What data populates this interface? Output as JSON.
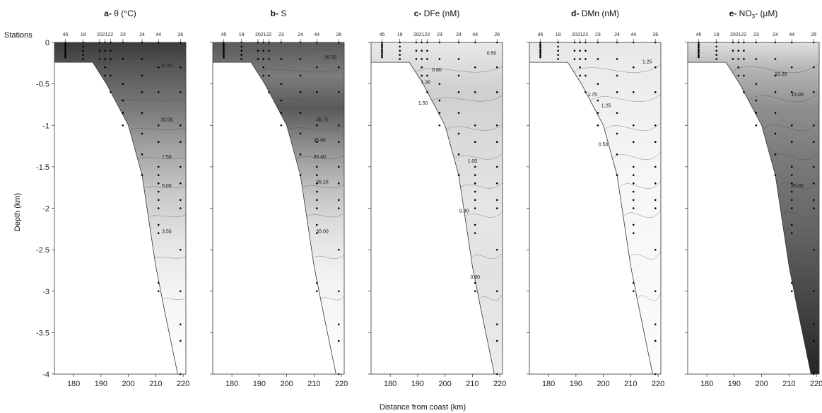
{
  "figure": {
    "stations_label": "Stations",
    "ylabel": "Depth (km)",
    "xlabel": "Distance from coast (km)"
  },
  "chart_data": {
    "type": "contour",
    "xlim": [
      173,
      221
    ],
    "ylim": [
      -4,
      0
    ],
    "x_ticks": [
      180,
      190,
      200,
      210,
      220
    ],
    "x_tick_labels": [
      "180",
      "190",
      "200",
      "210",
      "220"
    ],
    "y_ticks": [
      0,
      -0.5,
      -1,
      -1.5,
      -2,
      -2.5,
      -3,
      -3.5,
      -4
    ],
    "y_tick_labels": [
      "0",
      "-0.5",
      "-1",
      "-1.5",
      "-2",
      "-2.5",
      "-3",
      "-3.5",
      "-4"
    ],
    "stations": [
      {
        "name": "45",
        "x": 177
      },
      {
        "name": "19",
        "x": 183.5
      },
      {
        "name": "20",
        "x": 189.5
      },
      {
        "name": "21",
        "x": 191.5
      },
      {
        "name": "22",
        "x": 193.5
      },
      {
        "name": "23",
        "x": 198
      },
      {
        "name": "24",
        "x": 205
      },
      {
        "name": "44",
        "x": 211
      },
      {
        "name": "26",
        "x": 219
      }
    ],
    "bathymetry": [
      [
        173,
        -0.24
      ],
      [
        187,
        -0.24
      ],
      [
        192,
        -0.5
      ],
      [
        200,
        -1.0
      ],
      [
        205,
        -1.6
      ],
      [
        210,
        -2.7
      ],
      [
        213,
        -3.2
      ],
      [
        218,
        -4.0
      ]
    ],
    "sample_depths_km": [
      [
        0,
        -0.02,
        -0.04,
        -0.06,
        -0.08,
        -0.1,
        -0.12,
        -0.14,
        -0.16,
        -0.18
      ],
      [
        0,
        -0.05,
        -0.1,
        -0.15,
        -0.2
      ],
      [
        0,
        -0.1,
        -0.2
      ],
      [
        0,
        -0.1,
        -0.2,
        -0.3,
        -0.4
      ],
      [
        0,
        -0.1,
        -0.2,
        -0.4,
        -0.6
      ],
      [
        0,
        -0.2,
        -0.5,
        -0.7,
        -0.85,
        -1.0
      ],
      [
        0,
        -0.2,
        -0.4,
        -0.6,
        -0.85,
        -1.1,
        -1.35,
        -1.6
      ],
      [
        0,
        -0.3,
        -0.6,
        -1.0,
        -1.2,
        -1.5,
        -1.6,
        -1.7,
        -1.8,
        -1.9,
        -2.0,
        -2.2,
        -2.3,
        -2.9,
        -3.0
      ],
      [
        0,
        -0.3,
        -0.6,
        -1.0,
        -1.2,
        -1.5,
        -1.7,
        -1.9,
        -2.0,
        -2.5,
        -3.0,
        -3.4,
        -3.6,
        -4.0
      ]
    ],
    "panels": [
      {
        "letter": "a",
        "title": "θ (°C)",
        "title_sup": "",
        "title_post": "",
        "shade": "darktop",
        "contour_labels": [
          {
            "text": "11.50",
            "x": 214,
            "y": -0.3
          },
          {
            "text": "10.00",
            "x": 214,
            "y": -0.95
          },
          {
            "text": "7.50",
            "x": 214,
            "y": -1.4
          },
          {
            "text": "5.00",
            "x": 214,
            "y": -1.75
          },
          {
            "text": "3.50",
            "x": 214,
            "y": -2.3
          }
        ]
      },
      {
        "letter": "b",
        "title": "S",
        "title_sup": "",
        "title_post": "",
        "shade": "salinity",
        "contour_labels": [
          {
            "text": "35.55",
            "x": 216,
            "y": -0.2
          },
          {
            "text": "35.75",
            "x": 213,
            "y": -0.95
          },
          {
            "text": "35.65",
            "x": 212,
            "y": -1.2
          },
          {
            "text": "35.40",
            "x": 212,
            "y": -1.4
          },
          {
            "text": "35.15",
            "x": 213,
            "y": -1.7
          },
          {
            "text": "35.00",
            "x": 213,
            "y": -2.3
          }
        ]
      },
      {
        "letter": "c",
        "title": "DFe (nM)",
        "title_sup": "",
        "title_post": "",
        "shade": "dfe",
        "contour_labels": [
          {
            "text": "0.50",
            "x": 217,
            "y": -0.15
          },
          {
            "text": "0.80",
            "x": 197,
            "y": -0.35
          },
          {
            "text": "1.30",
            "x": 193,
            "y": -0.5
          },
          {
            "text": "1.50",
            "x": 192,
            "y": -0.75
          },
          {
            "text": "1.00",
            "x": 210,
            "y": -1.45
          },
          {
            "text": "0.80",
            "x": 207,
            "y": -2.05
          },
          {
            "text": "0.80",
            "x": 211,
            "y": -2.85
          }
        ]
      },
      {
        "letter": "d",
        "title": "DMn (nM)",
        "title_sup": "",
        "title_post": "",
        "shade": "dmn",
        "contour_labels": [
          {
            "text": "1.25",
            "x": 216,
            "y": -0.25
          },
          {
            "text": "1.75",
            "x": 196,
            "y": -0.65
          },
          {
            "text": "1.25",
            "x": 201,
            "y": -0.78
          },
          {
            "text": "0.50",
            "x": 200,
            "y": -1.25
          }
        ]
      },
      {
        "letter": "e",
        "title": "NO",
        "title_sup": "3",
        "title_post": "- (μM)",
        "shade": "nitrate",
        "contour_labels": [
          {
            "text": "10.00",
            "x": 207,
            "y": -0.4
          },
          {
            "text": "15.00",
            "x": 213,
            "y": -0.65
          },
          {
            "text": "20.00",
            "x": 213,
            "y": -1.75
          }
        ]
      }
    ]
  }
}
